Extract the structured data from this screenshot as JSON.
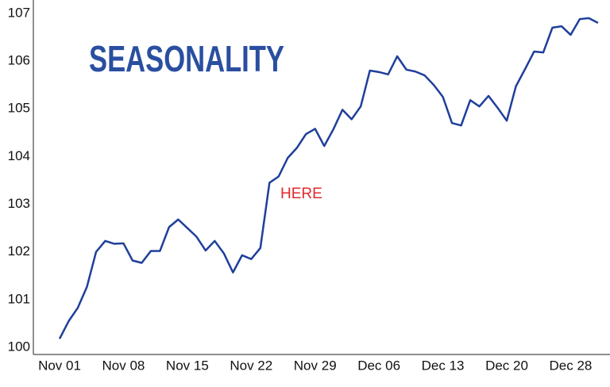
{
  "chart_data": {
    "type": "line",
    "title": "SEASONALITY",
    "annotation": "HERE",
    "categories": [
      "Nov 01",
      null,
      null,
      null,
      null,
      null,
      null,
      "Nov 08",
      null,
      null,
      null,
      null,
      null,
      null,
      "Nov 15",
      null,
      null,
      null,
      null,
      null,
      null,
      "Nov 22",
      null,
      null,
      null,
      null,
      null,
      null,
      "Nov 29",
      null,
      null,
      null,
      null,
      null,
      null,
      "Dec 06",
      null,
      null,
      null,
      null,
      null,
      null,
      "Dec 13",
      null,
      null,
      null,
      null,
      null,
      null,
      "Dec 20",
      null,
      null,
      null,
      null,
      null,
      null,
      "Dec 28",
      null,
      null,
      null
    ],
    "series": [
      {
        "color": "#1f3f9a",
        "values": [
          100.18,
          100.55,
          100.83,
          101.27,
          102.0,
          102.23,
          102.17,
          102.18,
          101.82,
          101.77,
          102.02,
          102.02,
          102.52,
          102.68,
          102.5,
          102.32,
          102.03,
          102.23,
          101.97,
          101.57,
          101.93,
          101.85,
          102.08,
          103.45,
          103.58,
          103.97,
          104.18,
          104.47,
          104.58,
          104.22,
          104.57,
          104.98,
          104.78,
          105.05,
          105.8,
          105.77,
          105.72,
          106.1,
          105.82,
          105.78,
          105.7,
          105.5,
          105.25,
          104.7,
          104.65,
          105.18,
          105.05,
          105.27,
          105.02,
          104.75,
          105.47,
          105.83,
          106.2,
          106.18,
          106.7,
          106.73,
          106.55,
          106.88,
          106.9,
          106.8
        ]
      }
    ],
    "ylim": [
      99.85,
      107.28
    ],
    "yticks": [
      100,
      101,
      102,
      103,
      104,
      105,
      106,
      107
    ],
    "grid": false
  }
}
